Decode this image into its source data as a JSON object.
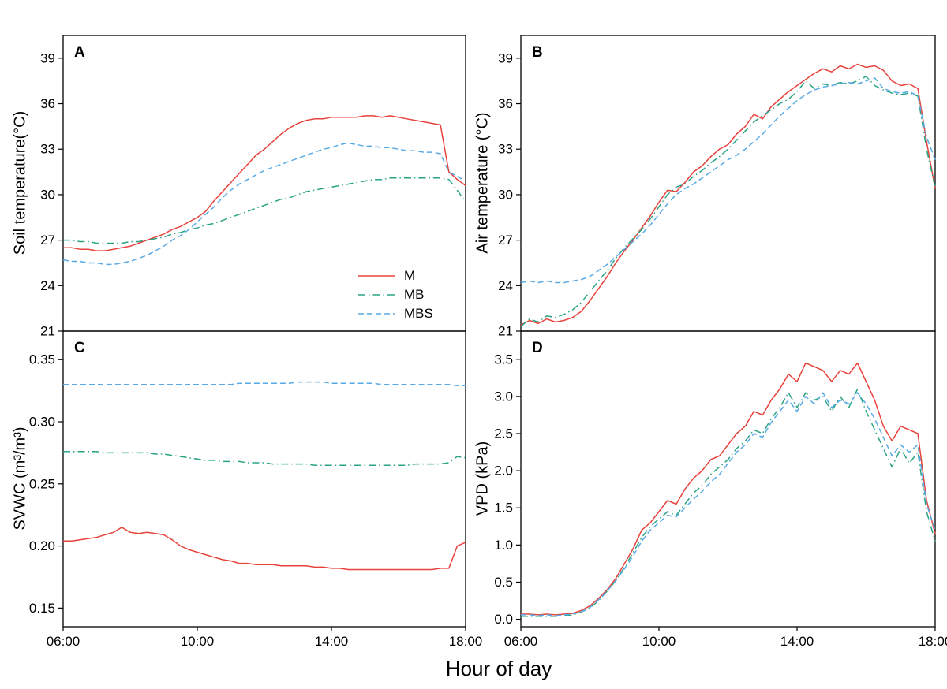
{
  "figure": {
    "xlabel": "Hour of day",
    "x_range": [
      6,
      18
    ],
    "x_ticks": [
      {
        "value": 6,
        "label": "06:00"
      },
      {
        "value": 10,
        "label": "10:00"
      },
      {
        "value": 14,
        "label": "14:00"
      },
      {
        "value": 18,
        "label": "18:00"
      }
    ]
  },
  "legend": {
    "items": [
      {
        "name": "M"
      },
      {
        "name": "MB"
      },
      {
        "name": "MBS"
      }
    ]
  },
  "series_styles": [
    {
      "name": "M",
      "color": "#e8423c",
      "dash": ""
    },
    {
      "name": "MB",
      "color": "#29a385",
      "dash": "9 4 1.5 4"
    },
    {
      "name": "MBS",
      "color": "#57aae6",
      "dash": "7 4"
    }
  ],
  "x_hours": [
    6,
    6.25,
    6.5,
    6.75,
    7,
    7.25,
    7.5,
    7.75,
    8,
    8.25,
    8.5,
    8.75,
    9,
    9.25,
    9.5,
    9.75,
    10,
    10.25,
    10.5,
    10.75,
    11,
    11.25,
    11.5,
    11.75,
    12,
    12.25,
    12.5,
    12.75,
    13,
    13.25,
    13.5,
    13.75,
    14,
    14.25,
    14.5,
    14.75,
    15,
    15.25,
    15.5,
    15.75,
    16,
    16.25,
    16.5,
    16.75,
    17,
    17.25,
    17.5,
    17.75,
    18
  ],
  "chart_data": [
    {
      "panel": "A",
      "type": "line",
      "ylabel": "Soil temperature(°C)",
      "ylim": [
        21,
        40.5
      ],
      "yticks": [
        21,
        24,
        27,
        30,
        33,
        36,
        39
      ],
      "ytick_labels": [
        "21",
        "24",
        "27",
        "30",
        "33",
        "36",
        "39"
      ],
      "series": [
        {
          "name": "M",
          "values": [
            26.5,
            26.5,
            26.4,
            26.4,
            26.3,
            26.3,
            26.4,
            26.5,
            26.6,
            26.8,
            27.0,
            27.2,
            27.4,
            27.7,
            27.9,
            28.2,
            28.5,
            28.9,
            29.6,
            30.2,
            30.8,
            31.4,
            32.0,
            32.6,
            33.0,
            33.5,
            34.0,
            34.4,
            34.7,
            34.9,
            35.0,
            35.0,
            35.1,
            35.1,
            35.1,
            35.1,
            35.2,
            35.2,
            35.1,
            35.2,
            35.1,
            35.0,
            34.9,
            34.8,
            34.7,
            34.6,
            31.5,
            31.0,
            30.6
          ]
        },
        {
          "name": "MB",
          "values": [
            27.0,
            27.0,
            26.9,
            26.9,
            26.8,
            26.8,
            26.8,
            26.8,
            26.9,
            26.9,
            27.0,
            27.1,
            27.2,
            27.4,
            27.5,
            27.7,
            27.8,
            28.0,
            28.1,
            28.3,
            28.5,
            28.7,
            28.9,
            29.1,
            29.3,
            29.5,
            29.7,
            29.8,
            30.0,
            30.2,
            30.3,
            30.4,
            30.5,
            30.6,
            30.7,
            30.8,
            30.9,
            31.0,
            31.0,
            31.1,
            31.1,
            31.1,
            31.1,
            31.1,
            31.1,
            31.1,
            31.0,
            30.3,
            29.5
          ]
        },
        {
          "name": "MBS",
          "values": [
            25.7,
            25.6,
            25.6,
            25.5,
            25.5,
            25.4,
            25.4,
            25.5,
            25.6,
            25.8,
            26.0,
            26.3,
            26.6,
            27.0,
            27.3,
            27.7,
            28.2,
            28.7,
            29.2,
            29.8,
            30.3,
            30.7,
            31.0,
            31.3,
            31.6,
            31.8,
            32.0,
            32.2,
            32.4,
            32.6,
            32.8,
            33.0,
            33.1,
            33.3,
            33.4,
            33.3,
            33.2,
            33.2,
            33.1,
            33.1,
            33.0,
            32.9,
            32.9,
            32.8,
            32.8,
            32.7,
            31.5,
            31.2,
            30.9
          ]
        }
      ]
    },
    {
      "panel": "B",
      "type": "line",
      "ylabel": "Air  temperature (°C)",
      "ylim": [
        21,
        40.5
      ],
      "yticks": [
        21,
        24,
        27,
        30,
        33,
        36,
        39
      ],
      "ytick_labels": [
        "21",
        "24",
        "27",
        "30",
        "33",
        "36",
        "39"
      ],
      "series": [
        {
          "name": "M",
          "values": [
            21.4,
            21.7,
            21.5,
            21.8,
            21.6,
            21.7,
            21.9,
            22.3,
            23.0,
            23.8,
            24.6,
            25.5,
            26.3,
            27.0,
            27.8,
            28.6,
            29.5,
            30.3,
            30.2,
            30.8,
            31.5,
            31.9,
            32.5,
            33.0,
            33.3,
            34.0,
            34.5,
            35.3,
            35.0,
            35.8,
            36.3,
            36.8,
            37.2,
            37.6,
            38.0,
            38.3,
            38.1,
            38.5,
            38.3,
            38.6,
            38.4,
            38.5,
            38.2,
            37.5,
            37.2,
            37.3,
            37.0,
            33.5,
            30.4
          ]
        },
        {
          "name": "MB",
          "values": [
            21.3,
            21.8,
            21.6,
            22.0,
            21.9,
            22.1,
            22.4,
            22.9,
            23.6,
            24.3,
            25.0,
            25.8,
            26.5,
            27.1,
            27.7,
            28.4,
            29.2,
            30.0,
            30.5,
            30.7,
            31.2,
            31.6,
            32.1,
            32.5,
            33.0,
            33.6,
            34.2,
            34.8,
            35.2,
            35.6,
            36.0,
            36.3,
            36.8,
            37.5,
            37.0,
            37.3,
            37.2,
            37.4,
            37.3,
            37.5,
            37.8,
            37.2,
            36.9,
            36.7,
            36.6,
            36.7,
            36.5,
            33.0,
            30.5
          ]
        },
        {
          "name": "MBS",
          "values": [
            24.2,
            24.3,
            24.2,
            24.3,
            24.2,
            24.2,
            24.3,
            24.4,
            24.6,
            25.0,
            25.4,
            25.9,
            26.4,
            26.9,
            27.4,
            28.0,
            28.7,
            29.4,
            30.0,
            30.4,
            30.7,
            31.1,
            31.5,
            31.9,
            32.3,
            32.6,
            33.0,
            33.5,
            34.0,
            34.6,
            35.2,
            35.7,
            36.2,
            36.6,
            36.9,
            37.1,
            37.2,
            37.3,
            37.4,
            37.3,
            37.5,
            37.7,
            37.0,
            36.8,
            36.7,
            36.8,
            36.5,
            33.8,
            32.3
          ]
        }
      ]
    },
    {
      "panel": "C",
      "type": "line",
      "ylabel": "SVWC (m³/m³)",
      "ylim": [
        0.135,
        0.373
      ],
      "yticks": [
        0.15,
        0.2,
        0.25,
        0.3,
        0.35
      ],
      "ytick_labels": [
        "0.15",
        "0.20",
        "0.25",
        "0.30",
        "0.35"
      ],
      "series": [
        {
          "name": "M",
          "values": [
            0.204,
            0.204,
            0.205,
            0.206,
            0.207,
            0.209,
            0.211,
            0.215,
            0.211,
            0.21,
            0.211,
            0.21,
            0.209,
            0.205,
            0.2,
            0.197,
            0.195,
            0.193,
            0.191,
            0.189,
            0.188,
            0.186,
            0.186,
            0.185,
            0.185,
            0.185,
            0.184,
            0.184,
            0.184,
            0.184,
            0.183,
            0.183,
            0.182,
            0.182,
            0.181,
            0.181,
            0.181,
            0.181,
            0.181,
            0.181,
            0.181,
            0.181,
            0.181,
            0.181,
            0.181,
            0.182,
            0.182,
            0.2,
            0.203
          ]
        },
        {
          "name": "MB",
          "values": [
            0.276,
            0.276,
            0.276,
            0.276,
            0.276,
            0.275,
            0.275,
            0.275,
            0.275,
            0.275,
            0.275,
            0.274,
            0.274,
            0.273,
            0.272,
            0.271,
            0.27,
            0.269,
            0.269,
            0.268,
            0.268,
            0.268,
            0.267,
            0.267,
            0.267,
            0.266,
            0.266,
            0.266,
            0.266,
            0.266,
            0.265,
            0.265,
            0.265,
            0.265,
            0.265,
            0.265,
            0.265,
            0.265,
            0.265,
            0.265,
            0.265,
            0.265,
            0.266,
            0.266,
            0.266,
            0.266,
            0.267,
            0.272,
            0.271
          ]
        },
        {
          "name": "MBS",
          "values": [
            0.33,
            0.33,
            0.33,
            0.33,
            0.33,
            0.33,
            0.33,
            0.33,
            0.33,
            0.33,
            0.33,
            0.33,
            0.33,
            0.33,
            0.33,
            0.33,
            0.33,
            0.33,
            0.33,
            0.33,
            0.33,
            0.331,
            0.331,
            0.331,
            0.331,
            0.331,
            0.331,
            0.331,
            0.332,
            0.332,
            0.332,
            0.332,
            0.331,
            0.331,
            0.331,
            0.331,
            0.331,
            0.331,
            0.33,
            0.33,
            0.33,
            0.33,
            0.33,
            0.33,
            0.33,
            0.33,
            0.33,
            0.329,
            0.329
          ]
        }
      ]
    },
    {
      "panel": "D",
      "type": "line",
      "ylabel": "VPD (kPa)",
      "ylim": [
        -0.1,
        3.88
      ],
      "yticks": [
        0,
        0.5,
        1.0,
        1.5,
        2.0,
        2.5,
        3.0,
        3.5
      ],
      "ytick_labels": [
        "0.0",
        "0.5",
        "1.0",
        "1.5",
        "2.0",
        "2.5",
        "3.0",
        "3.5"
      ],
      "series": [
        {
          "name": "M",
          "values": [
            0.07,
            0.07,
            0.06,
            0.07,
            0.06,
            0.07,
            0.08,
            0.12,
            0.18,
            0.28,
            0.4,
            0.55,
            0.75,
            0.95,
            1.2,
            1.3,
            1.45,
            1.6,
            1.55,
            1.75,
            1.9,
            2.0,
            2.15,
            2.2,
            2.35,
            2.5,
            2.6,
            2.8,
            2.75,
            2.95,
            3.1,
            3.3,
            3.2,
            3.45,
            3.4,
            3.35,
            3.2,
            3.35,
            3.3,
            3.45,
            3.2,
            2.95,
            2.6,
            2.4,
            2.6,
            2.55,
            2.5,
            1.6,
            1.15
          ]
        },
        {
          "name": "MB",
          "values": [
            0.04,
            0.04,
            0.04,
            0.04,
            0.04,
            0.05,
            0.06,
            0.1,
            0.15,
            0.25,
            0.38,
            0.52,
            0.7,
            0.9,
            1.1,
            1.25,
            1.35,
            1.45,
            1.4,
            1.55,
            1.7,
            1.8,
            1.95,
            2.05,
            2.15,
            2.3,
            2.4,
            2.55,
            2.5,
            2.7,
            2.85,
            3.05,
            2.85,
            3.05,
            2.95,
            3.0,
            2.8,
            3.0,
            2.85,
            3.1,
            2.8,
            2.55,
            2.3,
            2.05,
            2.3,
            2.1,
            2.25,
            1.45,
            1.05
          ]
        },
        {
          "name": "MBS",
          "values": [
            0.06,
            0.06,
            0.05,
            0.06,
            0.05,
            0.06,
            0.07,
            0.1,
            0.16,
            0.26,
            0.38,
            0.52,
            0.68,
            0.85,
            1.05,
            1.2,
            1.3,
            1.4,
            1.38,
            1.5,
            1.62,
            1.72,
            1.85,
            1.95,
            2.1,
            2.25,
            2.35,
            2.5,
            2.45,
            2.65,
            2.8,
            2.95,
            2.8,
            3.0,
            2.9,
            3.05,
            2.85,
            2.95,
            2.9,
            3.05,
            2.9,
            2.7,
            2.45,
            2.2,
            2.35,
            2.25,
            2.35,
            1.55,
            1.2
          ]
        }
      ]
    }
  ]
}
